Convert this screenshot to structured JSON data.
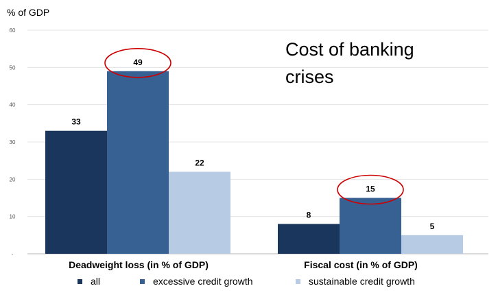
{
  "chart_data": {
    "type": "bar",
    "title": "Cost of banking crises",
    "ylabel": "% of GDP",
    "xlabel": "",
    "ylim": [
      0,
      60
    ],
    "yticks": [
      {
        "value": 60,
        "label": "60"
      },
      {
        "value": 50,
        "label": "50"
      },
      {
        "value": 40,
        "label": "40"
      },
      {
        "value": 30,
        "label": "30"
      },
      {
        "value": 20,
        "label": "20"
      },
      {
        "value": 10,
        "label": "10"
      },
      {
        "value": 0,
        "label": "-"
      }
    ],
    "categories": [
      "Deadweight loss (in % of GDP)",
      "Fiscal cost (in % of GDP)"
    ],
    "series": [
      {
        "name": "all",
        "color": "#1b365d",
        "values": [
          33,
          8
        ],
        "value_labels": [
          "33",
          "8"
        ]
      },
      {
        "name": "excessive credit growth",
        "color": "#386193",
        "values": [
          49,
          15
        ],
        "value_labels": [
          "49",
          "15"
        ]
      },
      {
        "name": "sustainable credit growth",
        "color": "#b7cce4",
        "values": [
          22,
          5
        ],
        "value_labels": [
          "22",
          "5"
        ]
      }
    ],
    "legend_position": "bottom",
    "grid": true,
    "annotations": [
      {
        "type": "ellipse",
        "target_series": 1,
        "target_category": 0,
        "color": "#cc0000"
      },
      {
        "type": "ellipse",
        "target_series": 1,
        "target_category": 1,
        "color": "#cc0000"
      }
    ]
  }
}
